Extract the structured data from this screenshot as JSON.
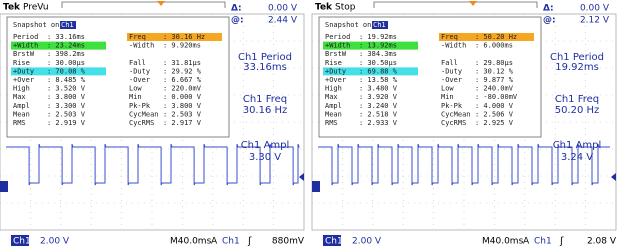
{
  "panels": [
    {
      "brand": "Tek",
      "state": "PreVu",
      "delta": {
        "label": "Δ:",
        "value": "0.00 V"
      },
      "at": {
        "label": "@:",
        "value": "2.44 V"
      },
      "snapshot": {
        "title": "Snapshot on",
        "channel": "Ch1",
        "rows": [
          [
            {
              "label": "Period",
              "value": ": 33.16ms"
            },
            {
              "label": "Freq",
              "value": ": 30.16 Hz",
              "highlight": "#f5a623"
            }
          ],
          [
            {
              "label": "+Width",
              "value": ": 23.24ms",
              "highlight": "#3ee03e"
            },
            {
              "label": "-Width",
              "value": ": 9.920ms"
            }
          ],
          [
            {
              "label": "BrstW",
              "value": ": 398.2ms"
            }
          ],
          [
            {
              "label": "Rise",
              "value": ": 30.00µs"
            },
            {
              "label": "Fall",
              "value": ": 31.81µs"
            }
          ],
          [
            {
              "label": "+Duty",
              "value": ": 70.08 %",
              "highlight": "#44e0e8"
            },
            {
              "label": "-Duty",
              "value": ": 29.92 %"
            }
          ],
          [
            {
              "label": "+Over",
              "value": ": 8.485 %"
            },
            {
              "label": "-Over",
              "value": ": 6.667 %"
            }
          ],
          [
            {
              "label": "High",
              "value": ": 3.520 V"
            },
            {
              "label": "Low",
              "value": ": 220.0mV"
            }
          ],
          [
            {
              "label": "Max",
              "value": ": 3.800 V"
            },
            {
              "label": "Min",
              "value": ": 0.000 V"
            }
          ],
          [
            {
              "label": "Ampl",
              "value": ": 3.300 V"
            },
            {
              "label": "Pk-Pk",
              "value": ": 3.800 V"
            }
          ],
          [
            {
              "label": "Mean",
              "value": ": 2.503 V"
            },
            {
              "label": "CycMean",
              "value": ": 2.503 V"
            }
          ],
          [
            {
              "label": "RMS",
              "value": ": 2.919 V"
            },
            {
              "label": "CycRMS",
              "value": ": 2.917 V"
            }
          ]
        ]
      },
      "readouts": [
        {
          "label": "Ch1 Period",
          "value": "33.16ms"
        },
        {
          "label": "Ch1 Freq",
          "value": "30.16 Hz"
        },
        {
          "label": "Ch1 Ampl",
          "value": "3.30 V"
        }
      ],
      "status": {
        "channel": "Ch1",
        "scale": "2.00 V",
        "timebase": "M40.0ms",
        "trigger_mode": "A",
        "trigger_source": "Ch1",
        "slope": "ʃ",
        "trigger_level": "880mV"
      }
    },
    {
      "brand": "Tek",
      "state": "Stop",
      "delta": {
        "label": "Δ:",
        "value": "0.00 V"
      },
      "at": {
        "label": "@:",
        "value": "2.12 V"
      },
      "snapshot": {
        "title": "Snapshot on",
        "channel": "Ch1",
        "rows": [
          [
            {
              "label": "Period",
              "value": ": 19.92ms"
            },
            {
              "label": "Freq",
              "value": ": 50.20 Hz",
              "highlight": "#f5a623"
            }
          ],
          [
            {
              "label": "+Width",
              "value": ": 13.92ms",
              "highlight": "#3ee03e"
            },
            {
              "label": "-Width",
              "value": ": 6.000ms"
            }
          ],
          [
            {
              "label": "BrstW",
              "value": ": 384.3ms"
            }
          ],
          [
            {
              "label": "Rise",
              "value": ": 30.50µs"
            },
            {
              "label": "Fall",
              "value": ": 29.80µs"
            }
          ],
          [
            {
              "label": "+Duty",
              "value": ": 69.88 %",
              "highlight": "#44e0e8"
            },
            {
              "label": "-Duty",
              "value": ": 30.12 %"
            }
          ],
          [
            {
              "label": "+Over",
              "value": ": 13.58 %"
            },
            {
              "label": "-Over",
              "value": ": 9.877 %"
            }
          ],
          [
            {
              "label": "High",
              "value": ": 3.480 V"
            },
            {
              "label": "Low",
              "value": ": 240.0mV"
            }
          ],
          [
            {
              "label": "Max",
              "value": ": 3.920 V"
            },
            {
              "label": "Min",
              "value": ": -80.00mV"
            }
          ],
          [
            {
              "label": "Ampl",
              "value": ": 3.240 V"
            },
            {
              "label": "Pk-Pk",
              "value": ": 4.000 V"
            }
          ],
          [
            {
              "label": "Mean",
              "value": ": 2.518 V"
            },
            {
              "label": "CycMean",
              "value": ": 2.506 V"
            }
          ],
          [
            {
              "label": "RMS",
              "value": ": 2.933 V"
            },
            {
              "label": "CycRMS",
              "value": ": 2.925 V"
            }
          ]
        ]
      },
      "readouts": [
        {
          "label": "Ch1 Period",
          "value": "19.92ms"
        },
        {
          "label": "Ch1 Freq",
          "value": "50.20 Hz"
        },
        {
          "label": "Ch1 Ampl",
          "value": "3.24 V"
        }
      ],
      "status": {
        "channel": "Ch1",
        "scale": "2.00 V",
        "timebase": "M40.0ms",
        "trigger_mode": "A",
        "trigger_source": "Ch1",
        "slope": "ʃ",
        "trigger_level": "2.08 V"
      }
    }
  ]
}
